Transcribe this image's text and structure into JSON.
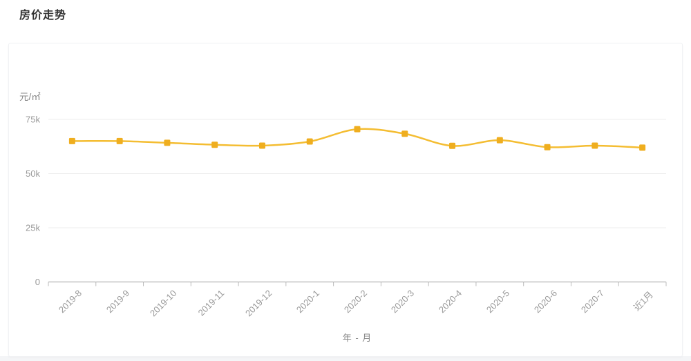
{
  "page": {
    "title": "房价走势"
  },
  "chart_data": {
    "type": "line",
    "title": "房价走势",
    "unit_label": "元/㎡",
    "xlabel": "年 - 月",
    "categories": [
      "2019-8",
      "2019-9",
      "2019-10",
      "2019-11",
      "2019-12",
      "2020-1",
      "2020-2",
      "2020-3",
      "2020-4",
      "2020-5",
      "2020-6",
      "2020-7",
      "近1月"
    ],
    "series": [
      {
        "name": "房价",
        "values": [
          65000,
          65000,
          64200,
          63300,
          62900,
          64800,
          70500,
          68400,
          62800,
          65400,
          62200,
          62900,
          62000
        ]
      }
    ],
    "ylim": [
      0,
      75000
    ],
    "yticks": [
      {
        "value": 0,
        "label": "0"
      },
      {
        "value": 25000,
        "label": "25k"
      },
      {
        "value": 50000,
        "label": "50k"
      },
      {
        "value": 75000,
        "label": "75k"
      }
    ],
    "grid": true,
    "legend": "none",
    "smooth": true,
    "colors": {
      "line": "#F4BD32",
      "marker": "#EFAE1F",
      "gridline": "#ededed",
      "axis_line": "#999999",
      "tick": "#bbbbbb",
      "axis_text": "#999999",
      "unit_text": "#888888",
      "title_text": "#333333"
    }
  }
}
